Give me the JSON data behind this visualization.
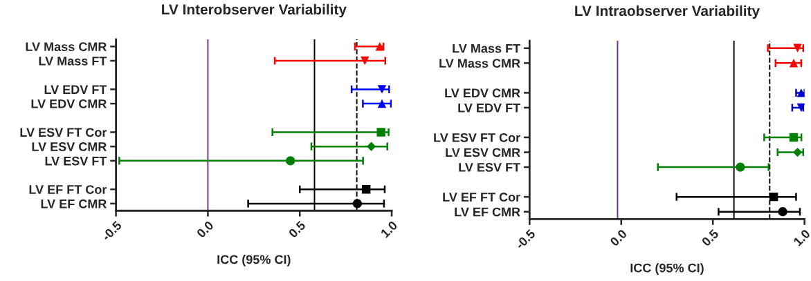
{
  "chart_data": [
    {
      "type": "scatter",
      "orientation": "horizontal",
      "title": "LV Interobserver Variability",
      "xlabel": "ICC (95% CI)",
      "categories": [
        "LV Mass CMR",
        "LV Mass FT",
        null,
        "LV EDV FT",
        "LV EDV CMR",
        null,
        "LV ESV FT Cor",
        "LV ESV CMR",
        "LV ESV FT",
        null,
        "LV EF FT Cor",
        "LV EF CMR"
      ],
      "xlim": [
        -0.5,
        1.0
      ],
      "xticks": [
        {
          "value": -0.5,
          "label": "-0.5"
        },
        {
          "value": 0,
          "label": "0.0"
        },
        {
          "value": 0.5,
          "label": "0.5"
        },
        {
          "value": 1.0,
          "label": "1.0"
        }
      ],
      "grid": false,
      "legend": false,
      "ref_lines": [
        {
          "axis": "x",
          "value": 0.0,
          "color": "#7030a0",
          "line_style": "solid"
        },
        {
          "axis": "x",
          "value": 0.58,
          "color": "#000000",
          "line_style": "solid"
        },
        {
          "axis": "x",
          "value": 0.81,
          "color": "#000000",
          "line_style": "dashed"
        }
      ],
      "series": [
        {
          "color": "#ff0000",
          "marker": "triangle",
          "values": [
            0.935,
            null,
            null,
            null,
            null,
            null,
            null,
            null,
            null,
            null,
            null,
            null
          ],
          "errors": [
            [
              0.8,
              0.955
            ],
            null,
            null,
            null,
            null,
            null,
            null,
            null,
            null,
            null,
            null,
            null
          ]
        },
        {
          "color": "#ff0000",
          "marker": "triangle-down",
          "values": [
            null,
            0.854,
            null,
            null,
            null,
            null,
            null,
            null,
            null,
            null,
            null,
            null
          ],
          "errors": [
            null,
            [
              0.364,
              0.965
            ],
            null,
            null,
            null,
            null,
            null,
            null,
            null,
            null,
            null,
            null
          ]
        },
        {
          "color": "#0000ff",
          "marker": "triangle-down",
          "values": [
            null,
            null,
            null,
            0.947,
            null,
            null,
            null,
            null,
            null,
            null,
            null,
            null
          ],
          "errors": [
            null,
            null,
            null,
            [
              0.782,
              0.986
            ],
            null,
            null,
            null,
            null,
            null,
            null,
            null,
            null
          ]
        },
        {
          "color": "#0000ff",
          "marker": "triangle",
          "values": [
            null,
            null,
            null,
            null,
            0.947,
            null,
            null,
            null,
            null,
            null,
            null,
            null
          ],
          "errors": [
            null,
            null,
            null,
            null,
            [
              0.843,
              0.996
            ],
            null,
            null,
            null,
            null,
            null,
            null,
            null
          ]
        },
        {
          "color": "#008000",
          "marker": "square",
          "values": [
            null,
            null,
            null,
            null,
            null,
            null,
            0.942,
            null,
            null,
            null,
            null,
            null
          ],
          "errors": [
            null,
            null,
            null,
            null,
            null,
            null,
            [
              0.351,
              0.983
            ],
            null,
            null,
            null,
            null,
            null
          ]
        },
        {
          "color": "#008000",
          "marker": "diamond",
          "values": [
            null,
            null,
            null,
            null,
            null,
            null,
            null,
            0.889,
            null,
            null,
            null,
            null
          ],
          "errors": [
            null,
            null,
            null,
            null,
            null,
            null,
            null,
            [
              0.563,
              0.976
            ],
            null,
            null,
            null,
            null
          ]
        },
        {
          "color": "#008000",
          "marker": "circle",
          "values": [
            null,
            null,
            null,
            null,
            null,
            null,
            null,
            null,
            0.449,
            null,
            null,
            null
          ],
          "errors": [
            null,
            null,
            null,
            null,
            null,
            null,
            null,
            null,
            [
              -0.482,
              0.844
            ],
            null,
            null,
            null
          ]
        },
        {
          "color": "#000000",
          "marker": "square",
          "values": [
            null,
            null,
            null,
            null,
            null,
            null,
            null,
            null,
            null,
            null,
            0.861,
            null
          ],
          "errors": [
            null,
            null,
            null,
            null,
            null,
            null,
            null,
            null,
            null,
            null,
            [
              0.5,
              0.962
            ],
            null
          ]
        },
        {
          "color": "#000000",
          "marker": "circle",
          "values": [
            null,
            null,
            null,
            null,
            null,
            null,
            null,
            null,
            null,
            null,
            null,
            0.813
          ],
          "errors": [
            null,
            null,
            null,
            null,
            null,
            null,
            null,
            null,
            null,
            null,
            null,
            [
              0.219,
              0.958
            ]
          ]
        }
      ]
    },
    {
      "type": "scatter",
      "orientation": "horizontal",
      "title": "LV Intraobserver Variability",
      "xlabel": "ICC (95% CI)",
      "categories": [
        "LV Mass FT",
        "LV Mass CMR",
        null,
        "LV EDV CMR",
        "LV EDV FT",
        null,
        "LV ESV FT Cor",
        "LV ESV CMR",
        "LV ESV FT",
        null,
        "LV EF FT Cor",
        "LV EF CMR"
      ],
      "xlim": [
        -0.5,
        1.0
      ],
      "xticks": [
        {
          "value": -0.5,
          "label": "-0.5"
        },
        {
          "value": 0,
          "label": "0.0"
        },
        {
          "value": 0.5,
          "label": "0.5"
        },
        {
          "value": 1.0,
          "label": "1.0"
        }
      ],
      "grid": false,
      "legend": false,
      "ref_lines": [
        {
          "axis": "x",
          "value": -0.02,
          "color": "#7030a0",
          "line_style": "solid"
        },
        {
          "axis": "x",
          "value": 0.615,
          "color": "#000000",
          "line_style": "solid"
        },
        {
          "axis": "x",
          "value": 0.81,
          "color": "#000000",
          "line_style": "dashed"
        }
      ],
      "series": [
        {
          "color": "#ff0000",
          "marker": "triangle-down",
          "values": [
            0.962,
            null,
            null,
            null,
            null,
            null,
            null,
            null,
            null,
            null,
            null,
            null
          ],
          "errors": [
            [
              0.8,
              0.993
            ],
            null,
            null,
            null,
            null,
            null,
            null,
            null,
            null,
            null,
            null,
            null
          ]
        },
        {
          "color": "#ff0000",
          "marker": "triangle",
          "values": [
            null,
            0.941,
            null,
            null,
            null,
            null,
            null,
            null,
            null,
            null,
            null,
            null
          ],
          "errors": [
            null,
            [
              0.842,
              0.982
            ],
            null,
            null,
            null,
            null,
            null,
            null,
            null,
            null,
            null,
            null
          ]
        },
        {
          "color": "#0000cc",
          "marker": "triangle",
          "values": [
            null,
            null,
            null,
            0.982,
            null,
            null,
            null,
            null,
            null,
            null,
            null,
            null
          ],
          "errors": [
            null,
            null,
            null,
            [
              0.954,
              1.0
            ],
            null,
            null,
            null,
            null,
            null,
            null,
            null,
            null
          ]
        },
        {
          "color": "#0000cc",
          "marker": "triangle-down",
          "values": [
            null,
            null,
            null,
            null,
            0.982,
            null,
            null,
            null,
            null,
            null,
            null,
            null
          ],
          "errors": [
            null,
            null,
            null,
            null,
            [
              0.933,
              0.993
            ],
            null,
            null,
            null,
            null,
            null,
            null,
            null
          ]
        },
        {
          "color": "#008000",
          "marker": "square",
          "values": [
            null,
            null,
            null,
            null,
            null,
            null,
            0.941,
            null,
            null,
            null,
            null,
            null
          ],
          "errors": [
            null,
            null,
            null,
            null,
            null,
            null,
            [
              0.78,
              0.983
            ],
            null,
            null,
            null,
            null,
            null
          ]
        },
        {
          "color": "#008000",
          "marker": "diamond",
          "values": [
            null,
            null,
            null,
            null,
            null,
            null,
            null,
            0.962,
            null,
            null,
            null,
            null
          ],
          "errors": [
            null,
            null,
            null,
            null,
            null,
            null,
            null,
            [
              0.853,
              0.993
            ],
            null,
            null,
            null,
            null
          ]
        },
        {
          "color": "#008000",
          "marker": "circle",
          "values": [
            null,
            null,
            null,
            null,
            null,
            null,
            null,
            null,
            0.65,
            null,
            null,
            null
          ],
          "errors": [
            null,
            null,
            null,
            null,
            null,
            null,
            null,
            null,
            [
              0.2,
              0.804
            ],
            null,
            null,
            null
          ]
        },
        {
          "color": "#000000",
          "marker": "square",
          "values": [
            null,
            null,
            null,
            null,
            null,
            null,
            null,
            null,
            null,
            null,
            0.832,
            null
          ],
          "errors": [
            null,
            null,
            null,
            null,
            null,
            null,
            null,
            null,
            null,
            null,
            [
              0.302,
              0.954
            ],
            null
          ]
        },
        {
          "color": "#000000",
          "marker": "circle",
          "values": [
            null,
            null,
            null,
            null,
            null,
            null,
            null,
            null,
            null,
            null,
            null,
            0.881
          ],
          "errors": [
            null,
            null,
            null,
            null,
            null,
            null,
            null,
            null,
            null,
            null,
            null,
            [
              0.531,
              0.975
            ]
          ]
        }
      ]
    }
  ]
}
